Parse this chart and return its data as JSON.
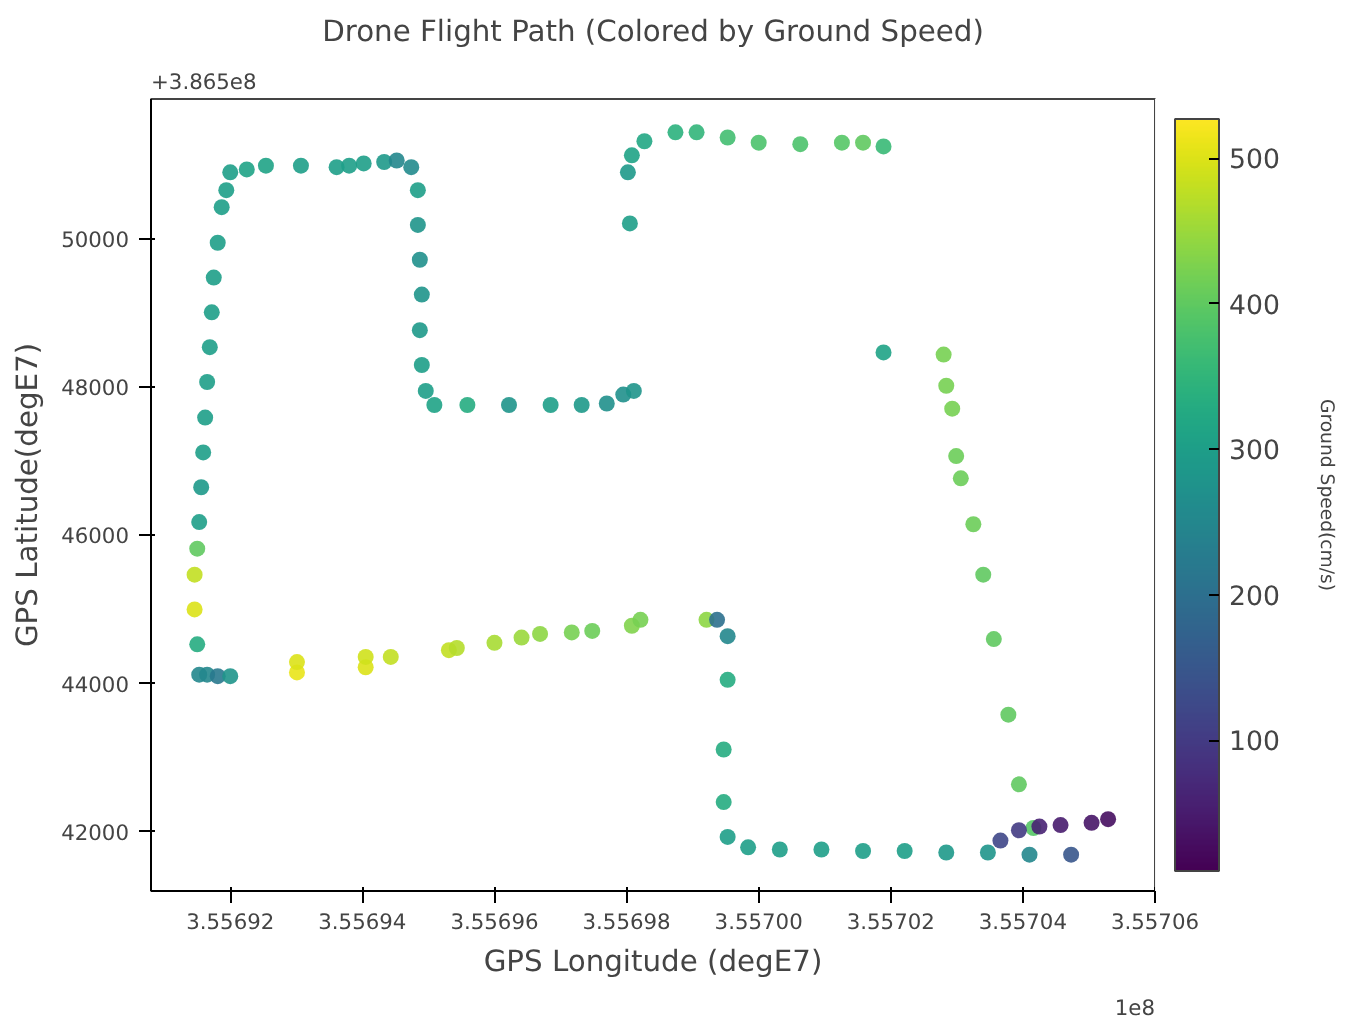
{
  "chart_data": {
    "type": "scatter",
    "title": "Drone Flight Path (Colored by Ground Speed)",
    "xlabel": "GPS Longitude (degE7)",
    "ylabel": "GPS Latitude(degE7)",
    "clabel": "Ground Speed(cm/s)",
    "annotations": [
      "1e8",
      "+3.865e8"
    ],
    "x": [
      3.5569153,
      3.556915,
      3.5569146,
      3.5569146,
      3.556915,
      3.5569153,
      3.5569156,
      3.5569159,
      3.5569162,
      3.5569165,
      3.5569169,
      3.5569172,
      3.5569175,
      3.5569181,
      3.5569187,
      3.5569194,
      3.55692,
      3.5569225,
      3.5569254,
      3.5569307,
      3.5569361,
      3.556938,
      3.5569402,
      3.5569433,
      3.5569452,
      3.5569474,
      3.5569484,
      3.5569484,
      3.5569487,
      3.556949,
      3.5569487,
      3.556949,
      3.5569496,
      3.5569509,
      3.5569559,
      3.5569622,
      3.5569685,
      3.5569732,
      3.556977,
      3.5569795,
      3.5569811,
      3.5569805,
      3.5569802,
      3.5569808,
      3.5569827,
      3.5569874,
      3.5569906,
      3.5569953,
      3.557,
      3.5570063,
      3.5570126,
      3.5570158,
      3.5570189,
      3.5570189,
      3.557028,
      3.5570284,
      3.5570293,
      3.5570299,
      3.5570306,
      3.5570325,
      3.557034,
      3.5570356,
      3.5570378,
      3.5570394,
      3.5570416,
      3.5569165,
      3.5569181,
      3.55692,
      3.5569301,
      3.5569301,
      3.5569405,
      3.5569405,
      3.5569443,
      3.5569531,
      3.5569543,
      3.55696,
      3.5569641,
      3.5569669,
      3.5569717,
      3.5569748,
      3.5569808,
      3.5569821,
      3.5569921,
      3.5569937,
      3.5569953,
      3.5569953,
      3.5569947,
      3.5569947,
      3.5569953,
      3.5569984,
      3.5570032,
      3.5570095,
      3.5570158,
      3.5570221,
      3.5570284,
      3.5570347,
      3.557041,
      3.5570473,
      3.5570366,
      3.5570394,
      3.5570425,
      3.5570457,
      3.5570504,
      3.5570529
    ],
    "values": [
      44120,
      44530,
      45000,
      45470,
      45820,
      46180,
      46650,
      47120,
      47590,
      48070,
      48540,
      49010,
      49480,
      49950,
      50430,
      50660,
      50900,
      50940,
      50990,
      50990,
      50970,
      50990,
      51020,
      51040,
      51060,
      50970,
      50660,
      50190,
      49720,
      49250,
      48770,
      48300,
      47950,
      47760,
      47760,
      47760,
      47760,
      47760,
      47780,
      47900,
      47950,
      50210,
      50900,
      51130,
      51320,
      51440,
      51440,
      51370,
      51300,
      51280,
      51300,
      51300,
      51250,
      48470,
      48440,
      48020,
      47710,
      47070,
      46770,
      46150,
      45470,
      44600,
      43580,
      42640,
      42050,
      44120,
      44100,
      44100,
      44150,
      44290,
      44220,
      44360,
      44360,
      44450,
      44480,
      44550,
      44620,
      44670,
      44690,
      44710,
      44780,
      44860,
      44860,
      44860,
      44640,
      44050,
      43110,
      42400,
      41930,
      41790,
      41760,
      41760,
      41740,
      41740,
      41720,
      41720,
      41690,
      41690,
      41880,
      42020,
      42070,
      42090,
      42120,
      42170
    ],
    "cvalues": [
      250,
      330,
      500,
      480,
      400,
      300,
      290,
      300,
      300,
      300,
      300,
      300,
      300,
      300,
      300,
      300,
      300,
      310,
      310,
      300,
      300,
      300,
      300,
      290,
      250,
      260,
      300,
      280,
      270,
      280,
      290,
      300,
      300,
      310,
      330,
      280,
      300,
      290,
      270,
      270,
      280,
      300,
      290,
      310,
      320,
      340,
      350,
      370,
      380,
      380,
      390,
      400,
      360,
      310,
      420,
      420,
      420,
      410,
      410,
      410,
      400,
      400,
      400,
      400,
      390,
      250,
      220,
      280,
      510,
      500,
      500,
      490,
      480,
      480,
      470,
      460,
      450,
      440,
      420,
      410,
      430,
      420,
      440,
      200,
      250,
      330,
      330,
      330,
      300,
      300,
      300,
      300,
      300,
      300,
      290,
      280,
      250,
      150,
      120,
      100,
      60,
      50,
      40,
      30
    ],
    "marker": "circle",
    "grid": false,
    "xlim": [
      3.556908,
      3.55706
    ],
    "ylim": [
      41200,
      51890
    ],
    "xticks": [
      {
        "value": 3.55692,
        "label": "3.55692"
      },
      {
        "value": 3.55694,
        "label": "3.55694"
      },
      {
        "value": 3.55696,
        "label": "3.55696"
      },
      {
        "value": 3.55698,
        "label": "3.55698"
      },
      {
        "value": 3.557,
        "label": "3.55700"
      },
      {
        "value": 3.55702,
        "label": "3.55702"
      },
      {
        "value": 3.55704,
        "label": "3.55704"
      },
      {
        "value": 3.55706,
        "label": "3.55706"
      }
    ],
    "yticks": [
      42000,
      44000,
      46000,
      48000,
      50000
    ],
    "clim": [
      10,
      527
    ],
    "cticks": [
      100,
      200,
      300,
      400,
      500
    ]
  }
}
